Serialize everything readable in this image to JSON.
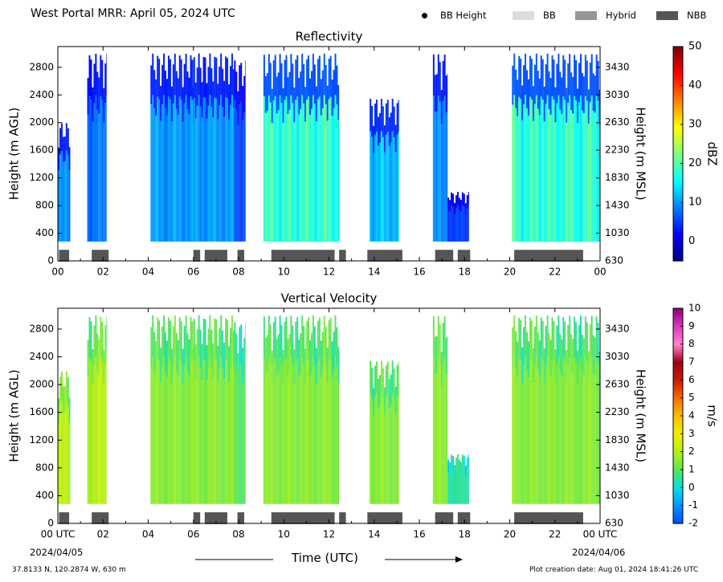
{
  "header": {
    "title": "West Portal MRR:  April 05, 2024 UTC",
    "legend": [
      {
        "label": "BB Height",
        "kind": "dot",
        "color": "#000000"
      },
      {
        "label": "BB",
        "kind": "swatch",
        "color": "#dcdcdc"
      },
      {
        "label": "Hybrid",
        "kind": "swatch",
        "color": "#969696"
      },
      {
        "label": "NBB",
        "kind": "swatch",
        "color": "#555555"
      }
    ]
  },
  "footer": {
    "xlabel": "Time (UTC)",
    "start_date": "2024/04/05",
    "end_date": "2024/04/06",
    "location": "37.8133 N, 120.2874 W, 630 m",
    "creation": "Plot creation date: Aug 01, 2024 18:41:26 UTC"
  },
  "chart_data": [
    {
      "type": "heatmap",
      "title": "Reflectivity",
      "ylabel": "Height (m AGL)",
      "y2label": "Height (m MSL)",
      "x_ticks": [
        "00",
        "02",
        "04",
        "06",
        "08",
        "10",
        "12",
        "14",
        "16",
        "18",
        "20",
        "22",
        "00"
      ],
      "xlim": [
        0,
        24
      ],
      "ylim": [
        0,
        3100
      ],
      "y_ticks": [
        0,
        400,
        800,
        1200,
        1600,
        2000,
        2400,
        2800
      ],
      "y2_ticks": [
        630,
        1030,
        1430,
        1830,
        2230,
        2630,
        3030,
        3430
      ],
      "colorbar": {
        "label": "dBZ",
        "min": -5,
        "max": 50,
        "ticks": [
          0,
          10,
          20,
          30,
          40,
          50
        ],
        "colormap": "jet"
      },
      "cloud_segments": [
        {
          "start": 0.0,
          "end": 0.55,
          "top": 2000,
          "level": 9
        },
        {
          "start": 1.3,
          "end": 2.15,
          "top": 3000,
          "level": 8
        },
        {
          "start": 4.1,
          "end": 6.0,
          "top": 3000,
          "level": 10
        },
        {
          "start": 6.0,
          "end": 7.8,
          "top": 3000,
          "level": 10
        },
        {
          "start": 7.8,
          "end": 8.3,
          "top": 2900,
          "level": 6
        },
        {
          "start": 9.1,
          "end": 12.45,
          "top": 3000,
          "level": 18
        },
        {
          "start": 13.8,
          "end": 15.1,
          "top": 2350,
          "level": 12
        },
        {
          "start": 16.6,
          "end": 17.25,
          "top": 3000,
          "level": 9
        },
        {
          "start": 17.25,
          "end": 18.2,
          "top": 1000,
          "level": 5
        },
        {
          "start": 20.1,
          "end": 24.0,
          "top": 3000,
          "level": 18
        }
      ],
      "bright_band_bars": [
        {
          "start": 0.05,
          "end": 0.5,
          "class": "NBB"
        },
        {
          "start": 1.5,
          "end": 2.25,
          "class": "NBB"
        },
        {
          "start": 6.0,
          "end": 6.3,
          "class": "NBB"
        },
        {
          "start": 6.5,
          "end": 7.5,
          "class": "NBB"
        },
        {
          "start": 7.95,
          "end": 8.25,
          "class": "NBB"
        },
        {
          "start": 9.45,
          "end": 12.25,
          "class": "NBB"
        },
        {
          "start": 12.45,
          "end": 12.75,
          "class": "NBB"
        },
        {
          "start": 13.7,
          "end": 15.25,
          "class": "NBB"
        },
        {
          "start": 16.7,
          "end": 17.5,
          "class": "NBB"
        },
        {
          "start": 17.7,
          "end": 18.25,
          "class": "NBB"
        },
        {
          "start": 20.2,
          "end": 23.25,
          "class": "NBB"
        }
      ]
    },
    {
      "type": "heatmap",
      "title": "Vertical Velocity",
      "ylabel": "Height (m AGL)",
      "y2label": "Height (m MSL)",
      "x_ticks": [
        "00 UTC",
        "02",
        "04",
        "06",
        "08",
        "10",
        "12",
        "14",
        "16",
        "18",
        "20",
        "22",
        "00 UTC"
      ],
      "xlim": [
        0,
        24
      ],
      "ylim": [
        0,
        3100
      ],
      "y_ticks": [
        0,
        400,
        800,
        1200,
        1600,
        2000,
        2400,
        2800
      ],
      "y2_ticks": [
        630,
        1030,
        1430,
        1830,
        2230,
        2630,
        3030,
        3430
      ],
      "colorbar": {
        "label": "m/s",
        "min": -2,
        "max": 10,
        "ticks": [
          -2,
          -1,
          0,
          1,
          2,
          3,
          4,
          5,
          6,
          7,
          8,
          9,
          10
        ]
      },
      "cloud_segments": [
        {
          "start": 0.0,
          "end": 0.55,
          "top": 2200,
          "level": 2
        },
        {
          "start": 1.3,
          "end": 2.15,
          "top": 3000,
          "level": 2
        },
        {
          "start": 4.1,
          "end": 6.0,
          "top": 3000,
          "level": 1.5
        },
        {
          "start": 6.0,
          "end": 7.8,
          "top": 3000,
          "level": 1.5
        },
        {
          "start": 7.8,
          "end": 8.3,
          "top": 2900,
          "level": 1
        },
        {
          "start": 9.1,
          "end": 12.45,
          "top": 3000,
          "level": 1.5
        },
        {
          "start": 13.8,
          "end": 15.1,
          "top": 2350,
          "level": 1.5
        },
        {
          "start": 16.6,
          "end": 17.25,
          "top": 3000,
          "level": 1.5
        },
        {
          "start": 17.25,
          "end": 18.2,
          "top": 1000,
          "level": 0.5
        },
        {
          "start": 20.1,
          "end": 24.0,
          "top": 3000,
          "level": 1.5
        }
      ],
      "bright_band_bars": [
        {
          "start": 0.05,
          "end": 0.5,
          "class": "NBB"
        },
        {
          "start": 1.5,
          "end": 2.25,
          "class": "NBB"
        },
        {
          "start": 6.0,
          "end": 6.3,
          "class": "NBB"
        },
        {
          "start": 6.5,
          "end": 7.5,
          "class": "NBB"
        },
        {
          "start": 7.95,
          "end": 8.25,
          "class": "NBB"
        },
        {
          "start": 9.45,
          "end": 12.25,
          "class": "NBB"
        },
        {
          "start": 12.45,
          "end": 12.75,
          "class": "NBB"
        },
        {
          "start": 13.7,
          "end": 15.25,
          "class": "NBB"
        },
        {
          "start": 16.7,
          "end": 17.5,
          "class": "NBB"
        },
        {
          "start": 17.7,
          "end": 18.25,
          "class": "NBB"
        },
        {
          "start": 20.2,
          "end": 23.25,
          "class": "NBB"
        }
      ]
    }
  ]
}
